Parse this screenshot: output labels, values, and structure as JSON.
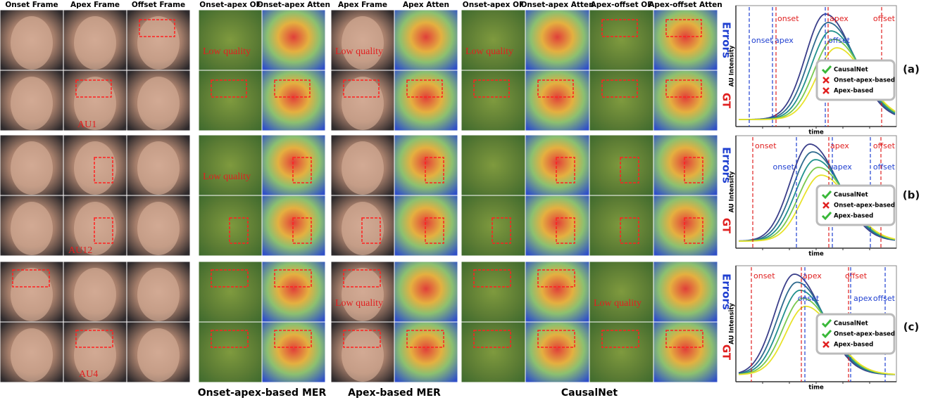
{
  "column_headers": [
    "Onset Frame",
    "Apex Frame",
    "Offset Frame",
    "Onset-apex OF",
    "Onset-apex Atten",
    "Apex Frame",
    "Apex Atten",
    "Onset-apex OF",
    "Onset-apex Atten",
    "Apex-offset OF",
    "Apex-offset Atten"
  ],
  "group_captions": [
    "Onset-apex-based MER",
    "Apex-based MER",
    "CausalNet"
  ],
  "samples": [
    {
      "au_label": "AU1",
      "row_labels": [
        "Errors",
        "GT"
      ],
      "annotations": [
        "Low quality",
        "Low quality",
        "Low quality"
      ],
      "plot": {
        "panel_label": "(a)",
        "y_label": "AU Intensity",
        "x_label": "time",
        "markers": [
          {
            "label": "onset",
            "color": "#1f3fd0"
          },
          {
            "label": "apex",
            "color": "#1f3fd0"
          },
          {
            "label": "offset",
            "color": "#1f3fd0"
          },
          {
            "label": "onset",
            "color": "#e02020"
          },
          {
            "label": "apex",
            "color": "#e02020"
          },
          {
            "label": "offset",
            "color": "#e02020"
          }
        ],
        "legend": [
          {
            "name": "CausalNet",
            "correct": true
          },
          {
            "name": "Onset-apex-based",
            "correct": false
          },
          {
            "name": "Apex-based",
            "correct": false
          }
        ]
      }
    },
    {
      "au_label": "AU12",
      "row_labels": [
        "Errors",
        "GT"
      ],
      "annotations": [
        "Low quality"
      ],
      "plot": {
        "panel_label": "(b)",
        "y_label": "AU Intensity",
        "x_label": "time",
        "markers": [
          {
            "label": "onset",
            "color": "#e02020"
          },
          {
            "label": "onset",
            "color": "#1f3fd0"
          },
          {
            "label": "apex",
            "color": "#1f3fd0"
          },
          {
            "label": "apex",
            "color": "#e02020"
          },
          {
            "label": "offset",
            "color": "#1f3fd0"
          },
          {
            "label": "offset",
            "color": "#e02020"
          }
        ],
        "legend": [
          {
            "name": "CausalNet",
            "correct": true
          },
          {
            "name": "Onset-apex-based",
            "correct": false
          },
          {
            "name": "Apex-based",
            "correct": true
          }
        ]
      }
    },
    {
      "au_label": "AU4",
      "row_labels": [
        "Errors",
        "GT"
      ],
      "annotations": [
        "Low quality",
        "Low quality"
      ],
      "plot": {
        "panel_label": "(c)",
        "y_label": "AU Intensity",
        "x_label": "time",
        "markers": [
          {
            "label": "onset",
            "color": "#e02020"
          },
          {
            "label": "apex",
            "color": "#e02020"
          },
          {
            "label": "onset",
            "color": "#1f3fd0"
          },
          {
            "label": "offset",
            "color": "#e02020"
          },
          {
            "label": "apex",
            "color": "#1f3fd0"
          },
          {
            "label": "offset",
            "color": "#1f3fd0"
          }
        ],
        "legend": [
          {
            "name": "CausalNet",
            "correct": true
          },
          {
            "name": "Onset-apex-based",
            "correct": true
          },
          {
            "name": "Apex-based",
            "correct": false
          }
        ]
      }
    }
  ]
}
